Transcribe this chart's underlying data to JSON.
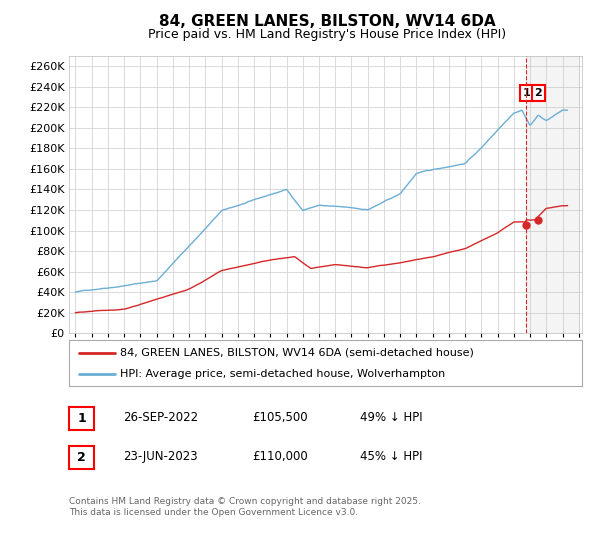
{
  "title": "84, GREEN LANES, BILSTON, WV14 6DA",
  "subtitle": "Price paid vs. HM Land Registry's House Price Index (HPI)",
  "ylim": [
    0,
    270000
  ],
  "ytick_values": [
    0,
    20000,
    40000,
    60000,
    80000,
    100000,
    120000,
    140000,
    160000,
    180000,
    200000,
    220000,
    240000,
    260000
  ],
  "hpi_color": "#6baed6",
  "price_color": "#d62728",
  "dashed_line_color": "#d62728",
  "shade_color": "#e8e8e8",
  "transaction1_date": 2022.73,
  "transaction1_price": 105500,
  "transaction2_date": 2023.47,
  "transaction2_price": 110000,
  "legend_label1": "84, GREEN LANES, BILSTON, WV14 6DA (semi-detached house)",
  "legend_label2": "HPI: Average price, semi-detached house, Wolverhampton",
  "table_row1": [
    "1",
    "26-SEP-2022",
    "£105,500",
    "49% ↓ HPI"
  ],
  "table_row2": [
    "2",
    "23-JUN-2023",
    "£110,000",
    "45% ↓ HPI"
  ],
  "footer": "Contains HM Land Registry data © Crown copyright and database right 2025.\nThis data is licensed under the Open Government Licence v3.0.",
  "background_color": "#ffffff",
  "grid_color": "#cccccc",
  "title_fontsize": 11,
  "subtitle_fontsize": 9
}
